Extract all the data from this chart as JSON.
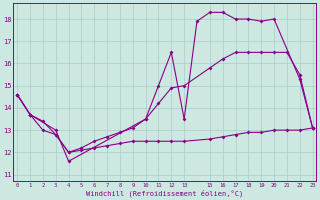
{
  "background_color": "#cce8e0",
  "grid_color": "#aacccc",
  "line_color": "#880088",
  "xlabel": "Windchill (Refroidissement éolien,°C)",
  "xlim": [
    -0.3,
    23.3
  ],
  "ylim": [
    10.7,
    18.7
  ],
  "yticks": [
    11,
    12,
    13,
    14,
    15,
    16,
    17,
    18
  ],
  "xticks": [
    0,
    1,
    2,
    3,
    4,
    5,
    6,
    7,
    8,
    9,
    10,
    11,
    12,
    13,
    15,
    16,
    17,
    18,
    19,
    20,
    21,
    22,
    23
  ],
  "s1_x": [
    0,
    1,
    2,
    3,
    4,
    5,
    6,
    7,
    8,
    9,
    10,
    11,
    12,
    13,
    15,
    16,
    17,
    18,
    19,
    20,
    21,
    22,
    23
  ],
  "s1_y": [
    14.6,
    13.7,
    13.4,
    12.8,
    12.0,
    12.1,
    12.2,
    12.3,
    12.4,
    12.5,
    12.5,
    12.5,
    12.5,
    12.5,
    12.6,
    12.7,
    12.8,
    12.9,
    12.9,
    13.0,
    13.0,
    13.0,
    13.1
  ],
  "s2_x": [
    0,
    1,
    2,
    3,
    4,
    5,
    6,
    7,
    8,
    9,
    10,
    11,
    12,
    13,
    15,
    16,
    17,
    18,
    19,
    20,
    21,
    22,
    23
  ],
  "s2_y": [
    14.6,
    13.7,
    13.0,
    12.8,
    12.0,
    12.2,
    12.5,
    12.7,
    12.9,
    13.1,
    13.5,
    14.2,
    14.9,
    15.0,
    15.8,
    16.2,
    16.5,
    16.5,
    16.5,
    16.5,
    16.5,
    15.5,
    13.1
  ],
  "s3_x": [
    0,
    1,
    3,
    4,
    10,
    11,
    12,
    13,
    14,
    15,
    16,
    17,
    18,
    19,
    20,
    22,
    23
  ],
  "s3_y": [
    14.6,
    13.7,
    13.0,
    11.6,
    13.5,
    15.0,
    16.5,
    13.5,
    17.9,
    18.3,
    18.3,
    18.0,
    18.0,
    17.9,
    18.0,
    15.3,
    13.1
  ]
}
